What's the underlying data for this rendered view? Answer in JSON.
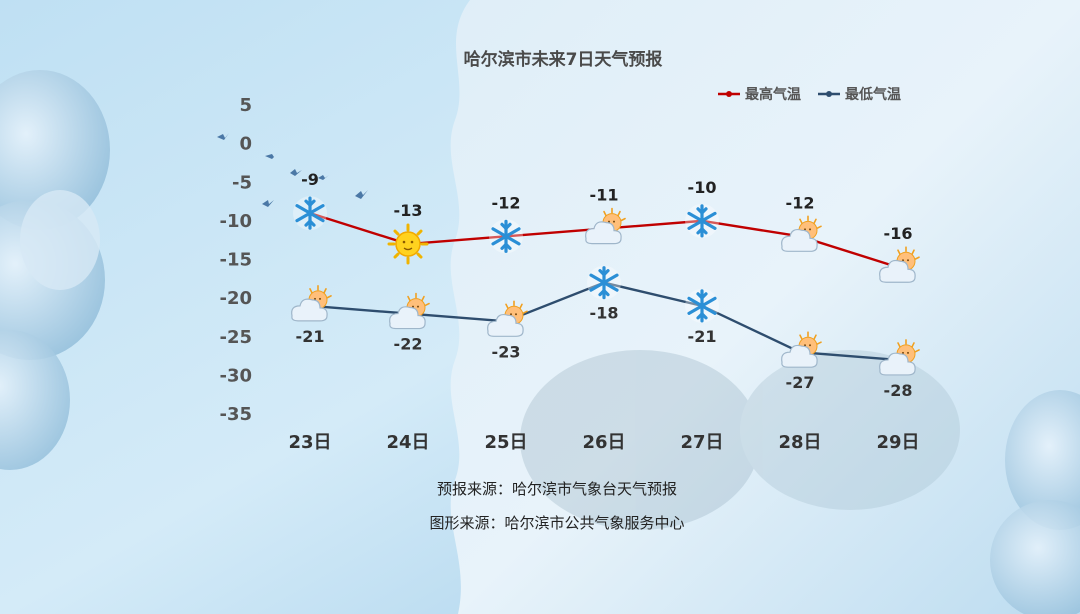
{
  "chart_data": {
    "type": "line",
    "title": "哈尔滨市未来7日天气预报",
    "categories": [
      "23日",
      "24日",
      "25日",
      "26日",
      "27日",
      "28日",
      "29日"
    ],
    "series": [
      {
        "name": "最高气温",
        "values": [
          -9,
          -13,
          -12,
          -11,
          -10,
          -12,
          -16
        ],
        "color": "#c00000",
        "icons": [
          "snowflake-icon",
          "sun-icon",
          "snowflake-icon",
          "cloud-sun-icon",
          "snowflake-icon",
          "cloud-sun-icon",
          "cloud-sun-icon"
        ]
      },
      {
        "name": "最低气温",
        "values": [
          -21,
          -22,
          -23,
          -18,
          -21,
          -27,
          -28
        ],
        "color": "#2e4d6e",
        "icons": [
          "cloud-sun-icon",
          "cloud-sun-icon",
          "cloud-sun-icon",
          "snowflake-icon",
          "snowflake-icon",
          "cloud-sun-icon",
          "cloud-sun-icon"
        ]
      }
    ],
    "yticks": [
      5,
      0,
      -5,
      -10,
      -15,
      -20,
      -25,
      -30,
      -35
    ],
    "ylim": [
      -35,
      5
    ],
    "legend_position": "top-right",
    "grid": false
  },
  "footer": {
    "source_forecast": "预报来源：哈尔滨市气象台天气预报",
    "source_graphic": "图形来源：哈尔滨市公共气象服务中心"
  }
}
